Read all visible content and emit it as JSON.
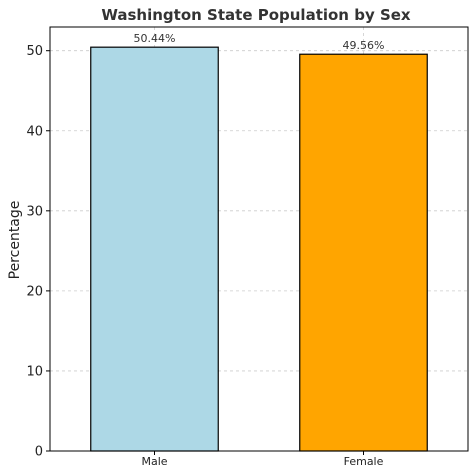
{
  "chart_data": {
    "type": "bar",
    "title": "Washington State Population by Sex",
    "xlabel": "",
    "ylabel": "Percentage",
    "categories": [
      "Male",
      "Female"
    ],
    "values": [
      50.44,
      49.56
    ],
    "data_labels": [
      "50.44%",
      "49.56%"
    ],
    "colors": [
      "#add8e6",
      "#ffa500"
    ],
    "edge_color": "#000000",
    "ylim": [
      0,
      52.96
    ],
    "yticks": [
      0,
      10,
      20,
      30,
      40,
      50
    ],
    "grid": true
  }
}
